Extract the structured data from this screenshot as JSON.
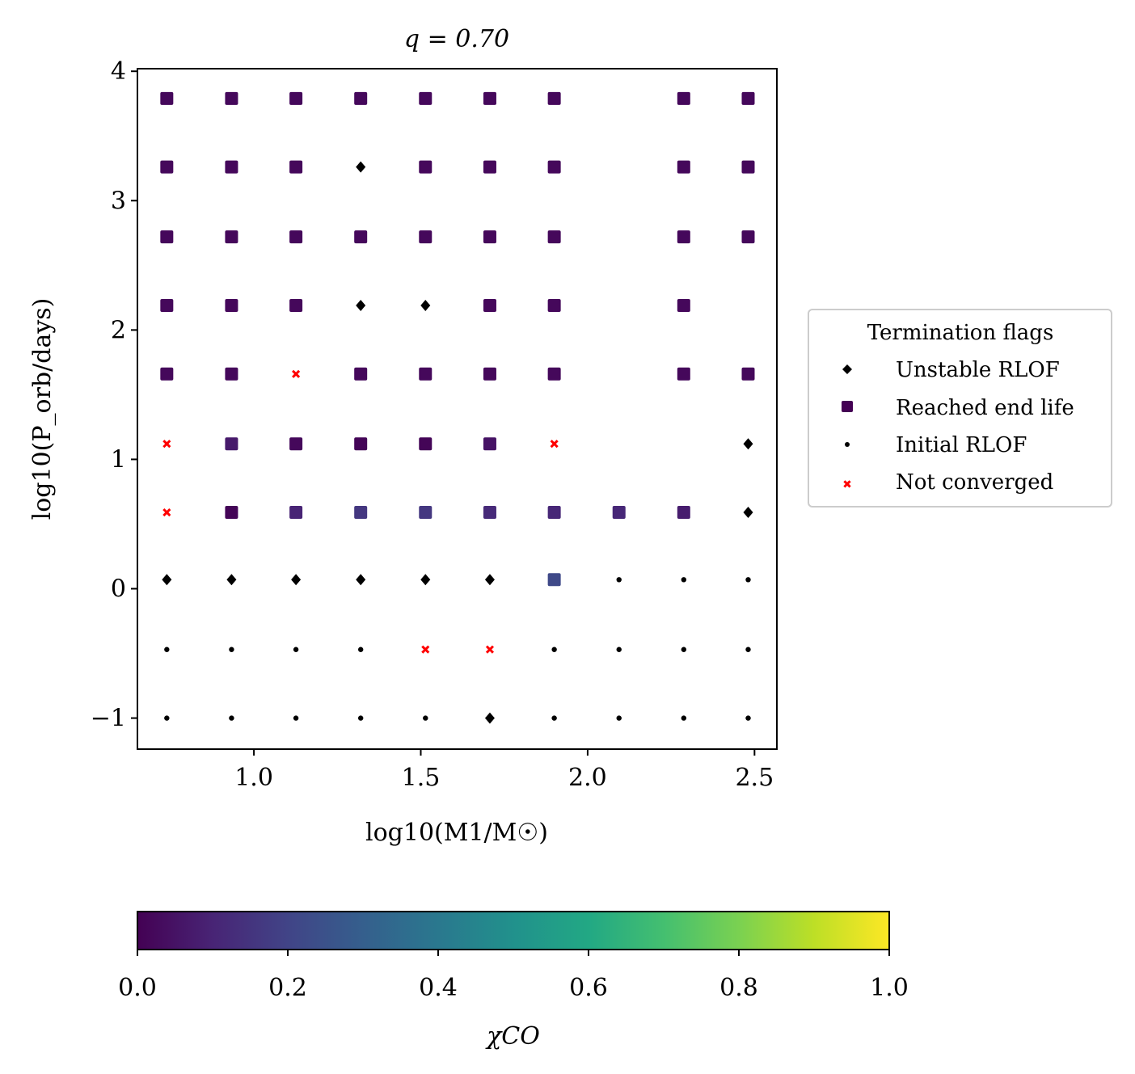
{
  "chart_data": {
    "type": "scatter",
    "title": "q = 0.70",
    "xlabel": "log10(M1/M☉)",
    "ylabel": "log10(P_orb/days)",
    "xlim": [
      0.651,
      2.567
    ],
    "ylim": [
      -1.24,
      4.02
    ],
    "xticks": [
      "1.0",
      "1.5",
      "2.0",
      "2.5"
    ],
    "xtick_values": [
      1.0,
      1.5,
      2.0,
      2.5
    ],
    "yticks": [
      "−1",
      "0",
      "1",
      "2",
      "3",
      "4"
    ],
    "ytick_values": [
      -1,
      0,
      1,
      2,
      3,
      4
    ],
    "grid": false,
    "x": [
      0.739,
      0.933,
      1.126,
      1.32,
      1.514,
      1.707,
      1.9,
      2.094,
      2.288,
      2.481
    ],
    "y": [
      3.79,
      3.26,
      2.72,
      2.19,
      1.66,
      1.12,
      0.59,
      0.07,
      -0.47,
      -1.0
    ],
    "flags_legend": "U = Unstable RLOF, E = Reached end life, I = Initial RLOF, N = Not converged, blank = none",
    "flags": [
      "EEEEEEE EE",
      "EEEUEEE EE",
      "EEEEEEE EE",
      "EEEUUEE E ",
      "EENEEEE EE",
      "NEEEEEN  U",
      "NEEEEEEEEU",
      "UUUUUUEIII",
      "IIIINNIIII",
      "IIIIIUIIII"
    ],
    "chi_co": [
      [
        0.02,
        0.02,
        0.02,
        0.02,
        0.02,
        0.02,
        0.02,
        null,
        0.02,
        0.02
      ],
      [
        0.02,
        0.02,
        0.02,
        null,
        0.02,
        0.02,
        0.02,
        null,
        0.02,
        0.02
      ],
      [
        0.02,
        0.02,
        0.02,
        0.02,
        0.02,
        0.02,
        0.02,
        null,
        0.02,
        0.02
      ],
      [
        0.02,
        0.02,
        0.02,
        null,
        null,
        0.02,
        0.02,
        null,
        0.02,
        null
      ],
      [
        0.02,
        0.02,
        null,
        0.02,
        0.02,
        0.02,
        0.02,
        null,
        0.02,
        0.02
      ],
      [
        null,
        0.07,
        0.02,
        0.01,
        0.01,
        0.05,
        null,
        null,
        null,
        null
      ],
      [
        null,
        0.01,
        0.1,
        0.16,
        0.16,
        0.12,
        0.11,
        0.11,
        0.08,
        null
      ],
      [
        null,
        null,
        null,
        null,
        null,
        null,
        0.22,
        null,
        null,
        null
      ],
      [
        null,
        null,
        null,
        null,
        null,
        null,
        null,
        null,
        null,
        null
      ],
      [
        null,
        null,
        null,
        null,
        null,
        null,
        null,
        null,
        null,
        null
      ]
    ],
    "legend": {
      "title": "Termination flags",
      "placement": "right",
      "entries": [
        "Unstable RLOF",
        "Reached end life",
        "Initial RLOF",
        "Not converged"
      ]
    },
    "colorbar": {
      "label": "χCO",
      "range": [
        0,
        1
      ],
      "ticks": [
        "0.0",
        "0.2",
        "0.4",
        "0.6",
        "0.8",
        "1.0"
      ],
      "colormap": "viridis"
    }
  },
  "colors": {
    "not_converged": "#ff0000",
    "unstable": "#000000",
    "initial": "#000000"
  }
}
